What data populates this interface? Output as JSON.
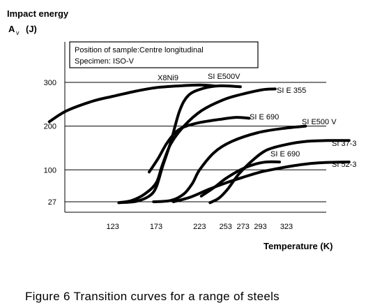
{
  "chart_data": {
    "type": "line",
    "title_lines": [
      "Impact energy",
      "A",
      "v",
      "(J)"
    ],
    "xlabel": "Temperature (K)",
    "caption": "Figure 6  Transition curves for a range of steels",
    "note_lines": [
      "Position of sample:Centre longitudinal",
      "Specimen: ISO-V"
    ],
    "x_ticks": [
      123,
      173,
      223,
      253,
      273,
      293,
      323
    ],
    "y_ticks": [
      27,
      100,
      200,
      300
    ],
    "xlim": [
      50,
      450
    ],
    "ylim": [
      0,
      340
    ],
    "grid": "horizontal",
    "series": [
      {
        "name": "X8Ni9",
        "x": [
          50,
          70,
          100,
          123,
          150,
          173,
          200,
          223,
          240
        ],
        "y": [
          210,
          235,
          257,
          268,
          280,
          288,
          292,
          294,
          292
        ]
      },
      {
        "name": "SI E500V",
        "x": [
          130,
          150,
          165,
          173,
          180,
          190,
          200,
          210,
          225,
          245,
          270
        ],
        "y": [
          25,
          28,
          40,
          60,
          105,
          165,
          235,
          270,
          285,
          292,
          290
        ]
      },
      {
        "name": "SI E 355",
        "x": [
          130,
          145,
          160,
          173,
          180,
          190,
          205,
          225,
          250,
          270,
          295,
          310
        ],
        "y": [
          25,
          30,
          45,
          70,
          110,
          160,
          200,
          235,
          260,
          272,
          283,
          285
        ]
      },
      {
        "name": "SI E 690",
        "x": [
          165,
          175,
          185,
          195,
          205,
          223,
          245,
          265,
          280
        ],
        "y": [
          95,
          125,
          160,
          185,
          198,
          208,
          215,
          220,
          218
        ]
      },
      {
        "name": "SI E500 V",
        "x": [
          170,
          190,
          205,
          215,
          223,
          240,
          260,
          290,
          320,
          345
        ],
        "y": [
          27,
          30,
          45,
          70,
          100,
          140,
          165,
          185,
          195,
          200
        ]
      },
      {
        "name": "SI 37-3",
        "x": [
          235,
          245,
          255,
          268,
          283,
          300,
          323,
          345,
          370,
          395
        ],
        "y": [
          25,
          35,
          55,
          90,
          120,
          145,
          158,
          165,
          167,
          167
        ]
      },
      {
        "name": "SI E 690",
        "x": [
          225,
          240,
          253,
          270,
          285,
          300,
          315
        ],
        "y": [
          40,
          60,
          80,
          100,
          112,
          118,
          118
        ]
      },
      {
        "name": "SI 52-3",
        "x": [
          193,
          213,
          233,
          253,
          273,
          293,
          313,
          333,
          360,
          395
        ],
        "y": [
          27,
          38,
          55,
          70,
          83,
          95,
          103,
          110,
          116,
          118
        ]
      }
    ]
  }
}
